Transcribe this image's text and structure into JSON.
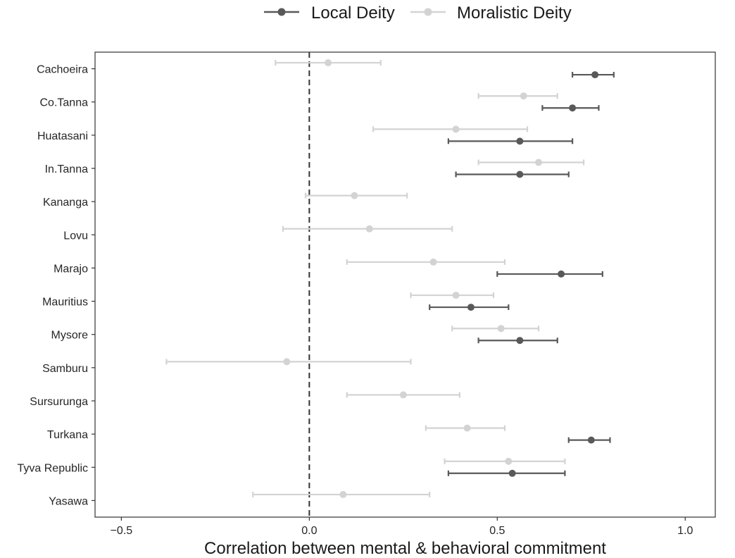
{
  "chart_data": {
    "type": "errorbar-dot",
    "xlabel": "Correlation between mental & behavioral commitment",
    "ylabel": "",
    "xlim": [
      -0.57,
      1.08
    ],
    "xticks": [
      -0.5,
      0.0,
      0.5,
      1.0
    ],
    "xtick_labels": [
      "−0.5",
      "0.0",
      "0.5",
      "1.0"
    ],
    "reference_line": {
      "x": 0,
      "style": "dashed"
    },
    "grid": false,
    "legend": {
      "position": "top"
    },
    "categories": [
      "Cachoeira",
      "Co.Tanna",
      "Huatasani",
      "In.Tanna",
      "Kananga",
      "Lovu",
      "Marajo",
      "Mauritius",
      "Mysore",
      "Samburu",
      "Sursurunga",
      "Turkana",
      "Tyva Republic",
      "Yasawa"
    ],
    "series": [
      {
        "name": "Local Deity",
        "color": "#595959",
        "points": [
          {
            "category": "Cachoeira",
            "estimate": 0.76,
            "lower": 0.7,
            "upper": 0.81
          },
          {
            "category": "Co.Tanna",
            "estimate": 0.7,
            "lower": 0.62,
            "upper": 0.77
          },
          {
            "category": "Huatasani",
            "estimate": 0.56,
            "lower": 0.37,
            "upper": 0.7
          },
          {
            "category": "In.Tanna",
            "estimate": 0.56,
            "lower": 0.39,
            "upper": 0.69
          },
          {
            "category": "Marajo",
            "estimate": 0.67,
            "lower": 0.5,
            "upper": 0.78
          },
          {
            "category": "Mauritius",
            "estimate": 0.43,
            "lower": 0.32,
            "upper": 0.53
          },
          {
            "category": "Mysore",
            "estimate": 0.56,
            "lower": 0.45,
            "upper": 0.66
          },
          {
            "category": "Turkana",
            "estimate": 0.75,
            "lower": 0.69,
            "upper": 0.8
          },
          {
            "category": "Tyva Republic",
            "estimate": 0.54,
            "lower": 0.37,
            "upper": 0.68
          }
        ]
      },
      {
        "name": "Moralistic Deity",
        "color": "#d3d3d3",
        "points": [
          {
            "category": "Cachoeira",
            "estimate": 0.05,
            "lower": -0.09,
            "upper": 0.19
          },
          {
            "category": "Co.Tanna",
            "estimate": 0.57,
            "lower": 0.45,
            "upper": 0.66
          },
          {
            "category": "Huatasani",
            "estimate": 0.39,
            "lower": 0.17,
            "upper": 0.58
          },
          {
            "category": "In.Tanna",
            "estimate": 0.61,
            "lower": 0.45,
            "upper": 0.73
          },
          {
            "category": "Kananga",
            "estimate": 0.12,
            "lower": -0.01,
            "upper": 0.26
          },
          {
            "category": "Lovu",
            "estimate": 0.16,
            "lower": -0.07,
            "upper": 0.38
          },
          {
            "category": "Marajo",
            "estimate": 0.33,
            "lower": 0.1,
            "upper": 0.52
          },
          {
            "category": "Mauritius",
            "estimate": 0.39,
            "lower": 0.27,
            "upper": 0.49
          },
          {
            "category": "Mysore",
            "estimate": 0.51,
            "lower": 0.38,
            "upper": 0.61
          },
          {
            "category": "Samburu",
            "estimate": -0.06,
            "lower": -0.38,
            "upper": 0.27
          },
          {
            "category": "Sursurunga",
            "estimate": 0.25,
            "lower": 0.1,
            "upper": 0.4
          },
          {
            "category": "Turkana",
            "estimate": 0.42,
            "lower": 0.31,
            "upper": 0.52
          },
          {
            "category": "Tyva Republic",
            "estimate": 0.53,
            "lower": 0.36,
            "upper": 0.68
          },
          {
            "category": "Yasawa",
            "estimate": 0.09,
            "lower": -0.15,
            "upper": 0.32
          }
        ]
      }
    ]
  }
}
